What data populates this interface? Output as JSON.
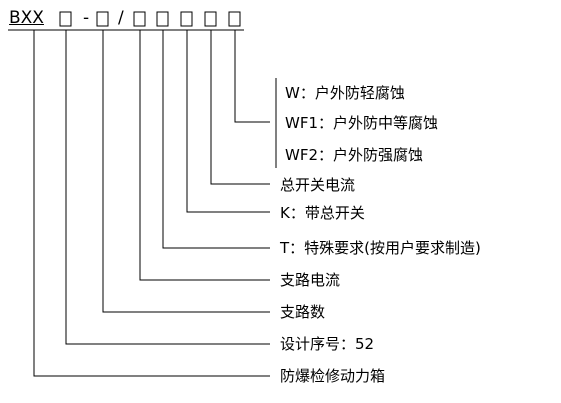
{
  "model_code": {
    "prefix": "BXX",
    "dash": "-",
    "slash": "/"
  },
  "legend": {
    "w": "W：户外防轻腐蚀",
    "wf1": "WF1：户外防中等腐蚀",
    "wf2": "WF2：户外防强腐蚀",
    "main_switch_current": "总开关电流",
    "k": "K：带总开关",
    "t": "T：特殊要求(按用户要求制造)",
    "branch_current": "支路电流",
    "branch_count": "支路数",
    "design_serial": "设计序号：52",
    "product_name": "防爆检修动力箱"
  }
}
